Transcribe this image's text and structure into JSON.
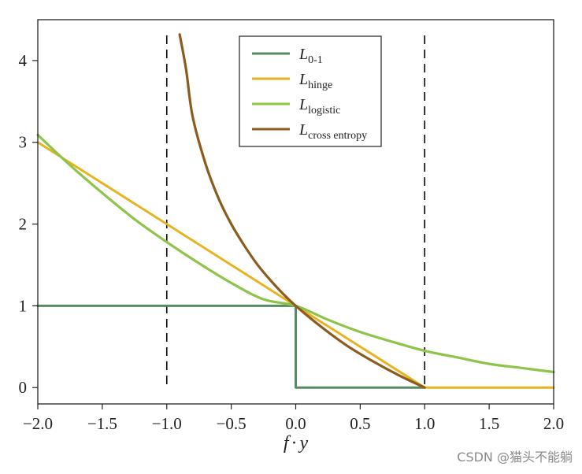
{
  "chart_data": {
    "type": "line",
    "title": "",
    "xlabel": "f·y",
    "xlabel_parts": {
      "var1": "f",
      "dot": "·",
      "var2": "y"
    },
    "ylabel": "",
    "xlim": [
      -2.0,
      2.0
    ],
    "ylim": [
      -0.2,
      4.5
    ],
    "xticks": [
      -2.0,
      -1.5,
      -1.0,
      -0.5,
      0.0,
      0.5,
      1.0,
      1.5,
      2.0
    ],
    "xtick_labels": [
      "−2.0",
      "−1.5",
      "−1.0",
      "−0.5",
      "0.0",
      "0.5",
      "1.0",
      "1.5",
      "2.0"
    ],
    "yticks": [
      0,
      1,
      2,
      3,
      4
    ],
    "ytick_labels": [
      "0",
      "1",
      "2",
      "3",
      "4"
    ],
    "grid": false,
    "legend_position": "top-center",
    "vertical_lines": [
      {
        "x": -1.0,
        "style": "dashed",
        "color": "#000000"
      },
      {
        "x": 1.0,
        "style": "dashed",
        "color": "#000000"
      }
    ],
    "series": [
      {
        "name": "L0-1",
        "label_main": "L",
        "label_sub": "0-1",
        "color": "#5a8a64",
        "points": [
          [
            -2.0,
            1.0
          ],
          [
            0.0,
            1.0
          ],
          [
            0.0,
            0.0
          ],
          [
            1.0,
            0.0
          ]
        ]
      },
      {
        "name": "Lhinge",
        "label_main": "L",
        "label_sub": "hinge",
        "color": "#e8b321",
        "points": [
          [
            -2.0,
            3.0
          ],
          [
            1.0,
            0.0
          ],
          [
            2.0,
            0.0
          ]
        ]
      },
      {
        "name": "Llogistic",
        "label_main": "L",
        "label_sub": "logistic",
        "color": "#8ec449",
        "points": [
          [
            -2.0,
            3.09
          ],
          [
            -1.75,
            2.72
          ],
          [
            -1.5,
            2.38
          ],
          [
            -1.25,
            2.06
          ],
          [
            -1.0,
            1.78
          ],
          [
            -0.75,
            1.52
          ],
          [
            -0.5,
            1.28
          ],
          [
            -0.25,
            1.08
          ],
          [
            0.0,
            1.0
          ],
          [
            0.25,
            0.83
          ],
          [
            0.5,
            0.68
          ],
          [
            0.75,
            0.56
          ],
          [
            1.0,
            0.45
          ],
          [
            1.25,
            0.37
          ],
          [
            1.5,
            0.29
          ],
          [
            1.75,
            0.24
          ],
          [
            2.0,
            0.19
          ]
        ]
      },
      {
        "name": "Lcross entropy",
        "label_main": "L",
        "label_sub": "cross entropy",
        "color": "#8c5c1e",
        "points": [
          [
            -0.9,
            4.32
          ],
          [
            -0.85,
            3.89
          ],
          [
            -0.8,
            3.32
          ],
          [
            -0.7,
            2.74
          ],
          [
            -0.6,
            2.32
          ],
          [
            -0.5,
            2.0
          ],
          [
            -0.4,
            1.74
          ],
          [
            -0.3,
            1.51
          ],
          [
            -0.2,
            1.32
          ],
          [
            -0.1,
            1.15
          ],
          [
            0.0,
            1.0
          ],
          [
            0.2,
            0.74
          ],
          [
            0.4,
            0.51
          ],
          [
            0.6,
            0.32
          ],
          [
            0.8,
            0.15
          ],
          [
            1.0,
            0.0
          ]
        ]
      }
    ]
  },
  "watermark": "CSDN @猫头不能躺"
}
